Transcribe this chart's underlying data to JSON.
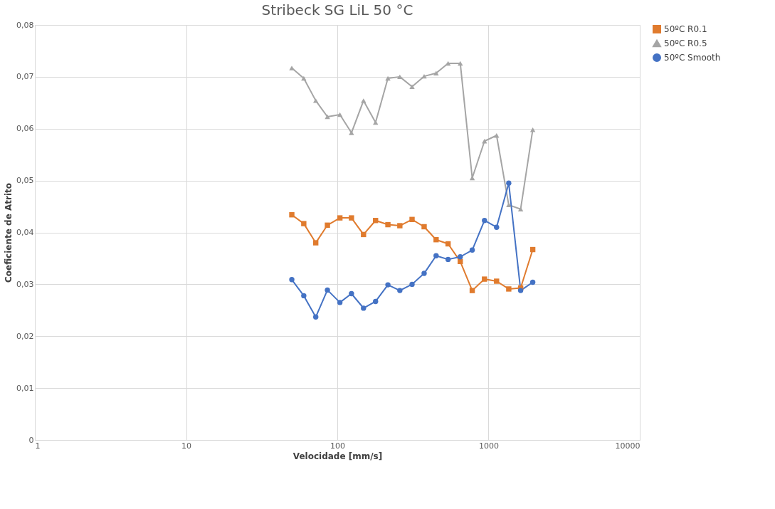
{
  "chart_data": {
    "type": "line",
    "title": "Stribeck SG LiL 50 °C",
    "xlabel": "Velocidade [mm/s]",
    "ylabel": "Coeficiente de Atrito",
    "x": [
      50,
      60,
      72,
      86,
      104,
      124,
      149,
      179,
      216,
      259,
      312,
      375,
      450,
      540,
      650,
      780,
      940,
      1130,
      1360,
      1630,
      1960
    ],
    "log": "x",
    "xlim": [
      1,
      10000
    ],
    "xticks": [
      1,
      10,
      100,
      1000,
      10000
    ],
    "ylim": [
      0,
      0.08
    ],
    "yticks": [
      {
        "value": 0,
        "label": "0"
      },
      {
        "value": 0.01,
        "label": "0,01"
      },
      {
        "value": 0.02,
        "label": "0,02"
      },
      {
        "value": 0.03,
        "label": "0,03"
      },
      {
        "value": 0.04,
        "label": "0,04"
      },
      {
        "value": 0.05,
        "label": "0,05"
      },
      {
        "value": 0.06,
        "label": "0,06"
      },
      {
        "value": 0.07,
        "label": "0,07"
      },
      {
        "value": 0.08,
        "label": "0,08"
      }
    ],
    "grid": true,
    "legend": "right",
    "line_style": "solid",
    "series": [
      {
        "name": "50ºC R0.1",
        "color": "#e07b2e",
        "marker": "square",
        "values": [
          0.0434,
          0.0417,
          0.038,
          0.0414,
          0.0428,
          0.0428,
          0.0396,
          0.0423,
          0.0415,
          0.0413,
          0.0425,
          0.0411,
          0.0386,
          0.0378,
          0.0344,
          0.0288,
          0.031,
          0.0306,
          0.0291,
          0.0293,
          0.0367
        ]
      },
      {
        "name": "50ºC R0.5",
        "color": "#a5a5a5",
        "marker": "triangle",
        "values": [
          0.0717,
          0.0697,
          0.0654,
          0.0623,
          0.0627,
          0.0592,
          0.0654,
          0.0612,
          0.0697,
          0.07,
          0.0681,
          0.0701,
          0.0707,
          0.0726,
          0.0726,
          0.0505,
          0.0576,
          0.0587,
          0.0453,
          0.0445,
          0.0598
        ]
      },
      {
        "name": "50ºC Smooth",
        "color": "#4472c4",
        "marker": "circle",
        "values": [
          0.0309,
          0.0278,
          0.0237,
          0.0289,
          0.0265,
          0.0282,
          0.0254,
          0.0267,
          0.0299,
          0.0288,
          0.03,
          0.0321,
          0.0355,
          0.0348,
          0.0353,
          0.0366,
          0.0423,
          0.041,
          0.0495,
          0.0288,
          0.0304
        ]
      }
    ]
  }
}
